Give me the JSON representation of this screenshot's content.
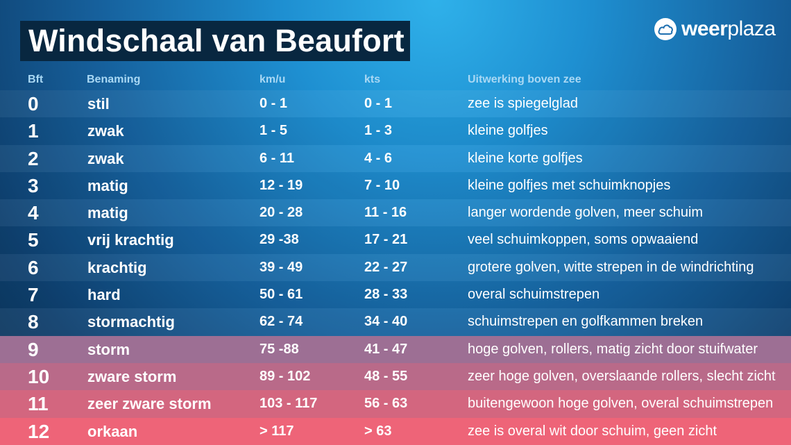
{
  "title": "Windschaal van Beaufort",
  "logo": {
    "text_bold": "weer",
    "text_regular": "plaza",
    "icon": "cloud-icon"
  },
  "headers": {
    "bft": "Bft",
    "name": "Benaming",
    "kmh": "km/u",
    "kts": "kts",
    "effect": "Uitwerking boven zee"
  },
  "colors": {
    "title_bg": "#082740",
    "storm_band_top": "#9d6e92",
    "storm_band_bottom": "#f06479",
    "header_text": "#a9d8f4"
  },
  "rows": [
    {
      "bft": "0",
      "name": "stil",
      "kmh": "0 - 1",
      "kts": "0 - 1",
      "effect": "zee is spiegelglad"
    },
    {
      "bft": "1",
      "name": "zwak",
      "kmh": "1 - 5",
      "kts": "1 - 3",
      "effect": "kleine golfjes"
    },
    {
      "bft": "2",
      "name": "zwak",
      "kmh": "6 - 11",
      "kts": "4 - 6",
      "effect": "kleine korte golfjes"
    },
    {
      "bft": "3",
      "name": "matig",
      "kmh": "12 - 19",
      "kts": "7 - 10",
      "effect": "kleine golfjes met schuimknopjes"
    },
    {
      "bft": "4",
      "name": "matig",
      "kmh": "20 - 28",
      "kts": "11 - 16",
      "effect": "langer wordende golven, meer schuim"
    },
    {
      "bft": "5",
      "name": "vrij krachtig",
      "kmh": "29  -38",
      "kts": "17 - 21",
      "effect": "veel schuimkoppen, soms opwaaiend"
    },
    {
      "bft": "6",
      "name": "krachtig",
      "kmh": "39 - 49",
      "kts": "22 - 27",
      "effect": "grotere golven, witte strepen in de windrichting"
    },
    {
      "bft": "7",
      "name": "hard",
      "kmh": "50 - 61",
      "kts": "28 - 33",
      "effect": "overal schuimstrepen"
    },
    {
      "bft": "8",
      "name": "stormachtig",
      "kmh": "62 - 74",
      "kts": "34 - 40",
      "effect": "schuimstrepen en golfkammen breken"
    },
    {
      "bft": "9",
      "name": "storm",
      "kmh": "75  -88",
      "kts": "41 - 47",
      "effect": "hoge golven, rollers, matig zicht door stuifwater"
    },
    {
      "bft": "10",
      "name": "zware storm",
      "kmh": "89 - 102",
      "kts": "48 - 55",
      "effect": "zeer hoge golven, overslaande rollers, slecht zicht"
    },
    {
      "bft": "11",
      "name": "zeer zware storm",
      "kmh": "103 - 117",
      "kts": "56 - 63",
      "effect": "buitengewoon hoge golven, overal schuimstrepen"
    },
    {
      "bft": "12",
      "name": "orkaan",
      "kmh": "> 117",
      "kts": "> 63",
      "effect": "zee is overal wit door schuim, geen zicht"
    }
  ]
}
